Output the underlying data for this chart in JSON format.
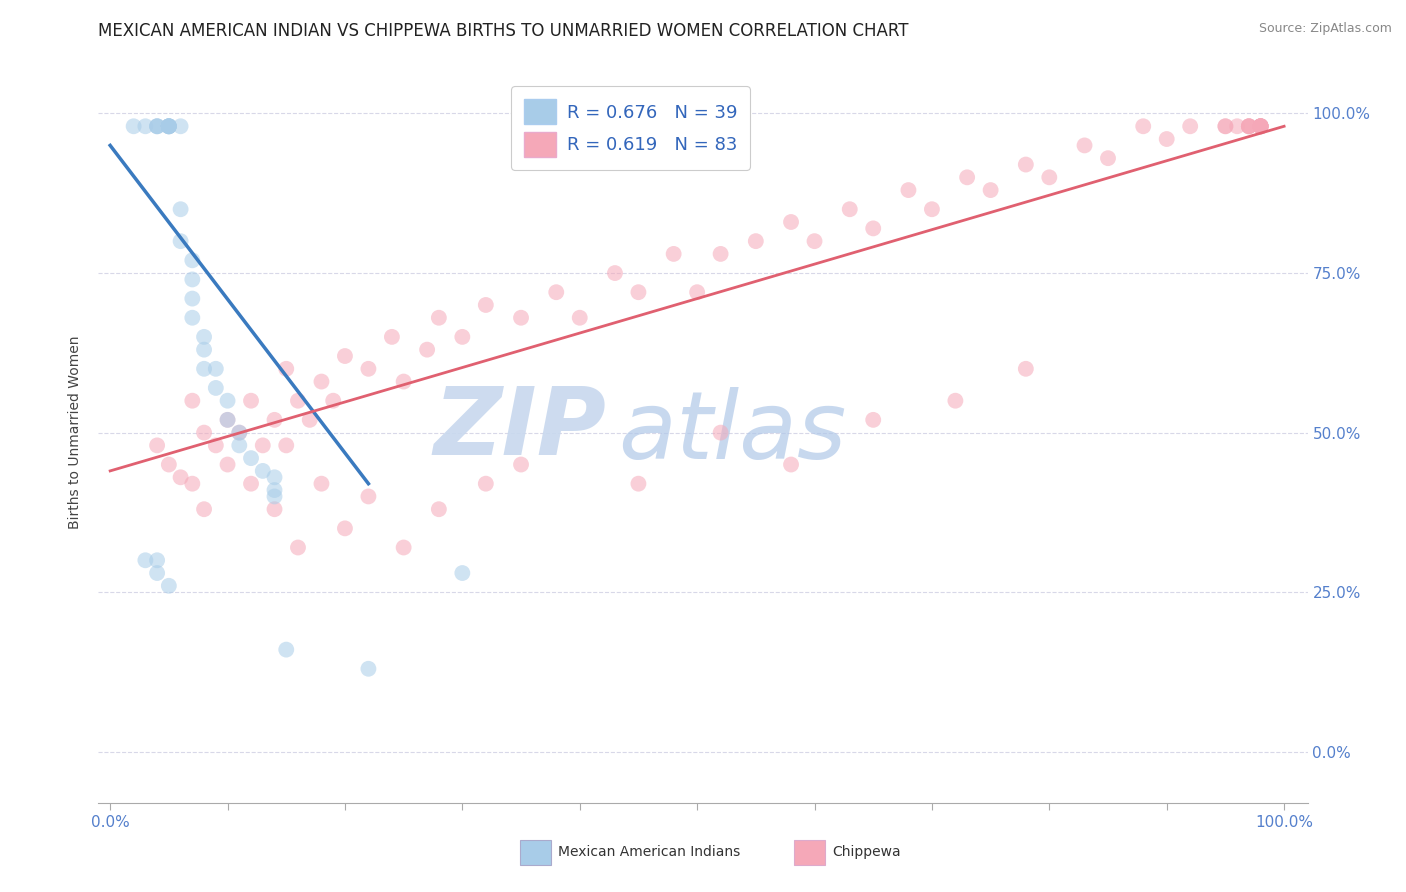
{
  "title": "MEXICAN AMERICAN INDIAN VS CHIPPEWA BIRTHS TO UNMARRIED WOMEN CORRELATION CHART",
  "source": "Source: ZipAtlas.com",
  "ylabel": "Births to Unmarried Women",
  "legend_blue_r": "R = 0.676",
  "legend_blue_n": "N = 39",
  "legend_pink_r": "R = 0.619",
  "legend_pink_n": "N = 83",
  "blue_color": "#a8cce8",
  "pink_color": "#f5a8b8",
  "blue_line_color": "#3a7abf",
  "pink_line_color": "#e06070",
  "watermark_zip_color": "#c8d8ee",
  "watermark_atlas_color": "#b0c8e8",
  "title_fontsize": 12,
  "label_fontsize": 10,
  "legend_fontsize": 13,
  "marker_size": 130,
  "alpha": 0.55,
  "background_color": "#ffffff",
  "grid_color": "#d8d8e8",
  "blue_scatter_x": [
    0.02,
    0.03,
    0.04,
    0.04,
    0.04,
    0.05,
    0.05,
    0.05,
    0.05,
    0.05,
    0.05,
    0.06,
    0.06,
    0.06,
    0.07,
    0.07,
    0.07,
    0.07,
    0.08,
    0.08,
    0.08,
    0.09,
    0.09,
    0.1,
    0.1,
    0.11,
    0.11,
    0.12,
    0.13,
    0.14,
    0.14,
    0.14,
    0.03,
    0.04,
    0.04,
    0.05,
    0.15,
    0.22,
    0.3
  ],
  "blue_scatter_y": [
    0.98,
    0.98,
    0.98,
    0.98,
    0.98,
    0.98,
    0.98,
    0.98,
    0.98,
    0.98,
    0.98,
    0.98,
    0.85,
    0.8,
    0.77,
    0.74,
    0.71,
    0.68,
    0.65,
    0.63,
    0.6,
    0.6,
    0.57,
    0.55,
    0.52,
    0.5,
    0.48,
    0.46,
    0.44,
    0.43,
    0.41,
    0.4,
    0.3,
    0.3,
    0.28,
    0.26,
    0.16,
    0.13,
    0.28
  ],
  "pink_scatter_x": [
    0.04,
    0.05,
    0.06,
    0.07,
    0.07,
    0.08,
    0.09,
    0.1,
    0.1,
    0.11,
    0.12,
    0.13,
    0.14,
    0.15,
    0.15,
    0.16,
    0.17,
    0.18,
    0.19,
    0.2,
    0.22,
    0.24,
    0.25,
    0.27,
    0.28,
    0.3,
    0.32,
    0.35,
    0.38,
    0.4,
    0.43,
    0.45,
    0.48,
    0.5,
    0.52,
    0.55,
    0.58,
    0.6,
    0.63,
    0.65,
    0.68,
    0.7,
    0.73,
    0.75,
    0.78,
    0.8,
    0.83,
    0.85,
    0.88,
    0.9,
    0.92,
    0.95,
    0.95,
    0.96,
    0.97,
    0.97,
    0.97,
    0.97,
    0.98,
    0.98,
    0.98,
    0.98,
    0.98,
    0.98,
    0.98,
    0.98,
    0.08,
    0.12,
    0.14,
    0.16,
    0.18,
    0.2,
    0.22,
    0.25,
    0.28,
    0.32,
    0.35,
    0.45,
    0.52,
    0.58,
    0.65,
    0.72,
    0.78
  ],
  "pink_scatter_y": [
    0.48,
    0.45,
    0.43,
    0.42,
    0.55,
    0.5,
    0.48,
    0.45,
    0.52,
    0.5,
    0.55,
    0.48,
    0.52,
    0.48,
    0.6,
    0.55,
    0.52,
    0.58,
    0.55,
    0.62,
    0.6,
    0.65,
    0.58,
    0.63,
    0.68,
    0.65,
    0.7,
    0.68,
    0.72,
    0.68,
    0.75,
    0.72,
    0.78,
    0.72,
    0.78,
    0.8,
    0.83,
    0.8,
    0.85,
    0.82,
    0.88,
    0.85,
    0.9,
    0.88,
    0.92,
    0.9,
    0.95,
    0.93,
    0.98,
    0.96,
    0.98,
    0.98,
    0.98,
    0.98,
    0.98,
    0.98,
    0.98,
    0.98,
    0.98,
    0.98,
    0.98,
    0.98,
    0.98,
    0.98,
    0.98,
    0.98,
    0.38,
    0.42,
    0.38,
    0.32,
    0.42,
    0.35,
    0.4,
    0.32,
    0.38,
    0.42,
    0.45,
    0.42,
    0.5,
    0.45,
    0.52,
    0.55,
    0.6
  ],
  "blue_line_x0": 0.0,
  "blue_line_x1": 0.22,
  "blue_line_y0": 0.95,
  "blue_line_y1": 0.42,
  "pink_line_x0": 0.0,
  "pink_line_x1": 1.0,
  "pink_line_y0": 0.44,
  "pink_line_y1": 0.98,
  "xtick_positions": [
    0.0,
    0.1,
    0.2,
    0.3,
    0.4,
    0.5,
    0.6,
    0.7,
    0.8,
    0.9,
    1.0
  ],
  "ytick_positions": [
    0.0,
    0.25,
    0.5,
    0.75,
    1.0
  ],
  "ytick_labels": [
    "0.0%",
    "25.0%",
    "50.0%",
    "75.0%",
    "100.0%"
  ]
}
